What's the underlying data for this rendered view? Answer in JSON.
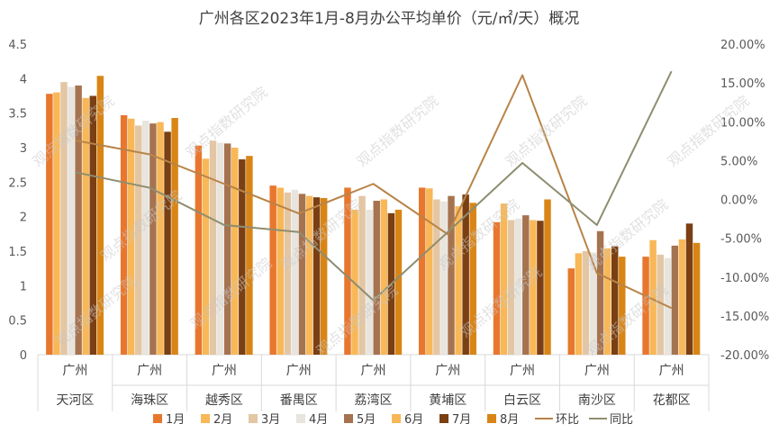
{
  "chart_data": {
    "type": "bar",
    "title": "广州各区2023年1月-8月办公平均单价（元/㎡/天）概况",
    "categories": [
      {
        "group": "广州",
        "name": "天河区"
      },
      {
        "group": "广州",
        "name": "海珠区"
      },
      {
        "group": "广州",
        "name": "越秀区"
      },
      {
        "group": "广州",
        "name": "番禺区"
      },
      {
        "group": "广州",
        "name": "荔湾区"
      },
      {
        "group": "广州",
        "name": "黄埔区"
      },
      {
        "group": "广州",
        "name": "白云区"
      },
      {
        "group": "广州",
        "name": "南沙区"
      },
      {
        "group": "广州",
        "name": "花都区"
      }
    ],
    "ylim": [
      0,
      4.5
    ],
    "y_ticks": [
      "0",
      "0.5",
      "1",
      "1.5",
      "2",
      "2.5",
      "3",
      "3.5",
      "4",
      "4.5"
    ],
    "y2lim": [
      -0.2,
      0.2
    ],
    "y2_ticks": [
      "-20.00%",
      "-15.00%",
      "-10.00%",
      "-5.00%",
      "0.00%",
      "5.00%",
      "10.00%",
      "15.00%",
      "20.00%"
    ],
    "series": [
      {
        "name": "1月",
        "color": "#E8772E",
        "values": [
          3.78,
          3.47,
          3.03,
          2.45,
          2.42,
          2.42,
          1.92,
          1.25,
          1.42
        ]
      },
      {
        "name": "2月",
        "color": "#F8B858",
        "values": [
          3.8,
          3.42,
          2.84,
          2.42,
          2.1,
          2.41,
          2.19,
          1.47,
          1.66
        ]
      },
      {
        "name": "3月",
        "color": "#E3C6A4",
        "values": [
          3.95,
          3.32,
          3.1,
          2.35,
          2.3,
          2.25,
          1.95,
          1.5,
          1.45
        ]
      },
      {
        "name": "4月",
        "color": "#E8E4DE",
        "values": [
          3.88,
          3.39,
          3.07,
          2.39,
          2.1,
          2.22,
          1.97,
          1.48,
          1.4
        ]
      },
      {
        "name": "5月",
        "color": "#A67350",
        "values": [
          3.9,
          3.35,
          3.06,
          2.33,
          2.23,
          2.3,
          2.02,
          1.79,
          1.58
        ]
      },
      {
        "name": "6月",
        "color": "#F8B858",
        "values": [
          3.72,
          3.37,
          3.0,
          2.3,
          2.25,
          2.15,
          1.95,
          1.54,
          1.67
        ]
      },
      {
        "name": "7月",
        "color": "#7A3F12",
        "values": [
          3.75,
          3.23,
          2.83,
          2.28,
          2.05,
          2.32,
          1.94,
          1.57,
          1.9
        ]
      },
      {
        "name": "8月",
        "color": "#D98516",
        "values": [
          4.04,
          3.43,
          2.88,
          2.27,
          2.1,
          2.2,
          2.25,
          1.42,
          1.62
        ]
      }
    ],
    "line_series": [
      {
        "name": "环比",
        "color": "#B88448",
        "axis": "right",
        "values": [
          0.076,
          0.058,
          0.02,
          -0.018,
          0.02,
          -0.045,
          0.16,
          -0.095,
          -0.14
        ]
      },
      {
        "name": "同比",
        "color": "#8F8D70",
        "axis": "right",
        "values": [
          0.035,
          0.015,
          -0.033,
          -0.042,
          -0.13,
          -0.042,
          0.047,
          -0.033,
          0.165
        ]
      }
    ],
    "grid": false,
    "legend_position": "bottom",
    "watermark": "观点指数研究院"
  }
}
